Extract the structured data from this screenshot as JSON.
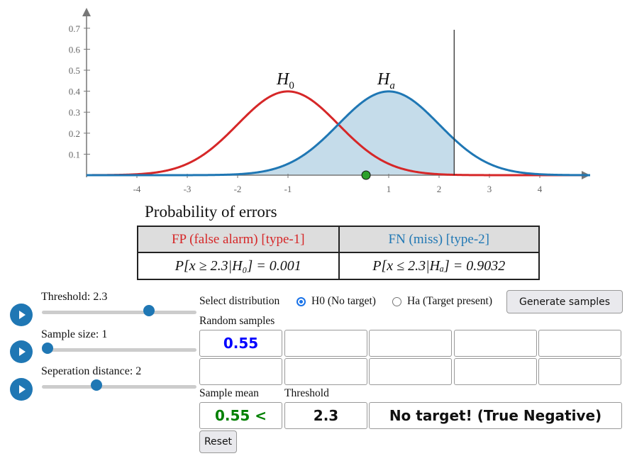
{
  "chart_data": {
    "type": "line",
    "xlim": [
      -5,
      5
    ],
    "ylim": [
      0,
      0.75
    ],
    "x_ticks": [
      "-4",
      "-3",
      "-2",
      "-1",
      "1",
      "2",
      "3",
      "4"
    ],
    "x_tick_values": [
      -4,
      -3,
      -2,
      -1,
      1,
      2,
      3,
      4
    ],
    "y_ticks": [
      "0.1",
      "0.2",
      "0.3",
      "0.4",
      "0.5",
      "0.6",
      "0.7"
    ],
    "y_tick_values": [
      0.1,
      0.2,
      0.3,
      0.4,
      0.5,
      0.6,
      0.7
    ],
    "series": [
      {
        "name": "H",
        "sub": "0",
        "distribution": "normal",
        "mean": -1,
        "sd": 1,
        "color": "#d62728"
      },
      {
        "name": "H",
        "sub": "a",
        "distribution": "normal",
        "mean": 1,
        "sd": 1,
        "color": "#1f77b4",
        "shaded_below_threshold": true
      }
    ],
    "threshold": 2.3,
    "sample_points": [
      0.55
    ],
    "sample_point_color": "#2ca02c",
    "shade_color": "#c5dcea"
  },
  "errors": {
    "title": "Probability of errors",
    "fp_header": "FP (false alarm) [type-1]",
    "fn_header": "FN (miss) [type-2]",
    "fp_value": "P[x ≥ 2.3|H₀] = 0.001",
    "fn_value": "P[x ≤ 2.3|Hₐ] = 0.9032"
  },
  "controls": {
    "threshold": {
      "label": "Threshold: 2.3",
      "value": 2.3,
      "fraction": 0.71
    },
    "sample_size": {
      "label": "Sample size: 1",
      "value": 1,
      "fraction": 0.0
    },
    "separation": {
      "label": "Seperation distance: 2",
      "value": 2,
      "fraction": 0.34
    }
  },
  "panel": {
    "select_label": "Select distribution",
    "option_h0": "H0 (No target)",
    "option_ha": "Ha (Target present)",
    "selected": "H0",
    "generate": "Generate samples",
    "random_samples_label": "Random samples",
    "samples": [
      "0.55",
      "",
      "",
      "",
      "",
      "",
      "",
      "",
      "",
      ""
    ],
    "sample_mean_label": "Sample mean",
    "threshold_label": "Threshold",
    "sample_mean_value": "0.55 <",
    "threshold_value": "2.3",
    "result": "No target! (True Negative)",
    "reset": "Reset",
    "sample_color": "#0000ff",
    "mean_color": "#008000"
  }
}
